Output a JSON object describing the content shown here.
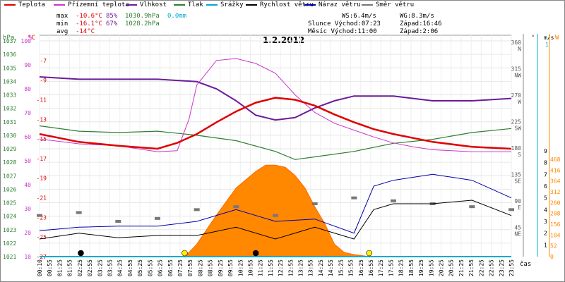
{
  "legend": [
    {
      "label": "Teplota",
      "color": "#e00000"
    },
    {
      "label": "Přízemní teplota",
      "color": "#cc33cc"
    },
    {
      "label": "Vlhkost",
      "color": "#6a1b9a"
    },
    {
      "label": "Tlak",
      "color": "#2e7d32"
    },
    {
      "label": "Srážky",
      "color": "#00aacc"
    },
    {
      "label": "Rychlost větru",
      "color": "#000000"
    },
    {
      "label": "Náraz větru",
      "color": "#0000aa"
    },
    {
      "label": "Směr větru",
      "color": "#777777"
    }
  ],
  "stats": {
    "max_label": "max",
    "min_label": "min",
    "avg_label": "avg",
    "max_temp": "-10.6°C",
    "max_hum": "85%",
    "max_press": "1030.9hPa",
    "max_rain": "0.0mm",
    "min_temp": "-16.1°C",
    "min_hum": "67%",
    "min_press": "1028.2hPa",
    "avg_temp": "-14°C"
  },
  "info": {
    "ws": "WS:6.4m/s",
    "wg": "WG:8.3m/s",
    "sun": "Slunce Východ:07:23",
    "sunset": "Západ:16:46",
    "moon": "Měsíc  Východ:11:00",
    "moonset": "Západ:2:06"
  },
  "colors": {
    "temp": "#e00000",
    "ground": "#cc33cc",
    "hum": "#6a1b9a",
    "press": "#2e7d32",
    "rain": "#00aacc",
    "wind": "#000000",
    "gust": "#0000aa",
    "dir": "#777777",
    "solar": "#ff8800",
    "axis_hpa": "#2e7d32",
    "axis_pct": "#cc33cc",
    "axis_temp": "#e00000"
  },
  "chart_data": {
    "type": "line",
    "title": "1.2.2012",
    "x_label": "čas",
    "x_ticks": [
      "00:10",
      "00:55",
      "01:25",
      "01:55",
      "02:25",
      "02:55",
      "03:25",
      "03:55",
      "04:25",
      "04:55",
      "05:25",
      "05:55",
      "06:25",
      "06:55",
      "07:25",
      "07:55",
      "08:25",
      "08:55",
      "09:25",
      "09:55",
      "10:25",
      "10:55",
      "11:25",
      "11:55",
      "12:25",
      "12:55",
      "13:25",
      "13:55",
      "14:25",
      "14:55",
      "15:25",
      "15:55",
      "16:25",
      "16:55",
      "17:25",
      "17:55",
      "18:25",
      "18:55",
      "19:25",
      "19:55",
      "20:25",
      "20:55",
      "21:25",
      "21:55",
      "22:25",
      "22:55",
      "23:25",
      "23:55"
    ],
    "axes": {
      "hpa": {
        "label": "hPa",
        "min": 1021,
        "max": 1037,
        "ticks": [
          1021,
          1022,
          1023,
          1024,
          1025,
          1026,
          1027,
          1028,
          1029,
          1030,
          1031,
          1032,
          1033,
          1034,
          1035,
          1036,
          1037
        ]
      },
      "pct": {
        "label": "%",
        "min": 10,
        "max": 100,
        "ticks": [
          10,
          20,
          30,
          40,
          50,
          60,
          70,
          80,
          90,
          100
        ]
      },
      "temp": {
        "label": "°C",
        "min": -27,
        "max": -5,
        "ticks": [
          -27,
          -25,
          -23,
          -21,
          -19,
          -17,
          -15,
          -13,
          -11,
          -9,
          -7
        ]
      },
      "dir": {
        "label": "°",
        "ticks": [
          {
            "v": 360,
            "l": "N"
          },
          {
            "v": 315,
            "l": "NW"
          },
          {
            "v": 270,
            "l": "W"
          },
          {
            "v": 225,
            "l": "SW"
          },
          {
            "v": 180,
            "l": "S"
          },
          {
            "v": 135,
            "l": "SE"
          },
          {
            "v": 90,
            "l": "E"
          },
          {
            "v": 45,
            "l": "NE"
          }
        ]
      },
      "wind": {
        "label": "m/s",
        "min": 0,
        "max": 9,
        "ticks": [
          1,
          2,
          3,
          4,
          5,
          6,
          7,
          8,
          9
        ]
      },
      "rain": {
        "label": "mm",
        "ticks": [
          1
        ]
      },
      "solar": {
        "label": "W",
        "min": 0,
        "max": 468,
        "ticks": [
          0,
          52,
          104,
          156,
          208,
          260,
          312,
          364,
          416,
          468
        ]
      }
    },
    "series": [
      {
        "name": "Teplota",
        "axis": "temp",
        "x": [
          0,
          2,
          4,
          6,
          7,
          8,
          9,
          10,
          11,
          12,
          13,
          14,
          15,
          16,
          17,
          18,
          19,
          20,
          22,
          24
        ],
        "y": [
          -14.5,
          -15.3,
          -15.7,
          -16.0,
          -15.4,
          -14.5,
          -13.3,
          -12.2,
          -11.3,
          -10.8,
          -11.0,
          -11.6,
          -12.5,
          -13.3,
          -14.0,
          -14.5,
          -14.9,
          -15.3,
          -15.8,
          -16.0
        ]
      },
      {
        "name": "Přízemní teplota",
        "axis": "temp",
        "x": [
          0,
          2,
          4,
          6,
          7,
          7.6,
          8,
          9,
          10,
          11,
          12,
          13,
          14,
          15,
          16,
          17,
          18,
          19,
          20,
          22,
          24
        ],
        "y": [
          -15.0,
          -15.5,
          -15.7,
          -16.3,
          -16.2,
          -13.0,
          -9.5,
          -7.0,
          -6.8,
          -7.3,
          -8.3,
          -10.5,
          -12.3,
          -13.4,
          -14.1,
          -14.8,
          -15.4,
          -15.8,
          -16.1,
          -16.3,
          -16.3
        ]
      },
      {
        "name": "Vlhkost",
        "axis": "pct",
        "x": [
          0,
          2,
          4,
          6,
          8,
          9,
          10,
          11,
          12,
          13,
          14,
          15,
          16,
          17,
          18,
          19,
          20,
          22,
          24
        ],
        "y": [
          85,
          84,
          84,
          84,
          83,
          80,
          75,
          69,
          67,
          68,
          72,
          75,
          77,
          77,
          77,
          76,
          75,
          75,
          76
        ]
      },
      {
        "name": "Tlak",
        "axis": "hpa",
        "x": [
          0,
          2,
          4,
          6,
          8,
          10,
          12,
          13,
          14,
          16,
          18,
          20,
          22,
          24
        ],
        "y": [
          1030.7,
          1030.3,
          1030.2,
          1030.3,
          1030.0,
          1029.6,
          1028.8,
          1028.2,
          1028.4,
          1028.8,
          1029.4,
          1029.7,
          1030.2,
          1030.5
        ]
      },
      {
        "name": "Rychlost větru",
        "axis": "wind",
        "x": [
          0,
          2,
          4,
          6,
          8,
          10,
          12,
          14,
          16,
          17,
          18,
          20,
          22,
          24
        ],
        "y": [
          1.5,
          2.0,
          1.6,
          1.8,
          1.8,
          2.5,
          1.5,
          2.5,
          1.5,
          4.0,
          4.5,
          4.5,
          4.8,
          3.5
        ]
      },
      {
        "name": "Náraz větru",
        "axis": "wind",
        "x": [
          0,
          2,
          4,
          6,
          8,
          10,
          12,
          14,
          16,
          17,
          18,
          20,
          22,
          24
        ],
        "y": [
          2.2,
          2.5,
          2.6,
          2.6,
          3.0,
          4.0,
          3.0,
          3.2,
          2.0,
          6.0,
          6.5,
          7.0,
          6.5,
          5.0
        ]
      },
      {
        "name": "Směr větru",
        "axis": "dir",
        "x": [
          0,
          2,
          4,
          6,
          8,
          10,
          12,
          14,
          16,
          18,
          20,
          22,
          24
        ],
        "y": [
          70,
          75,
          60,
          65,
          80,
          85,
          70,
          90,
          100,
          95,
          90,
          85,
          80
        ]
      },
      {
        "name": "Solar",
        "axis": "solar",
        "x": [
          7.4,
          8,
          9,
          10,
          11,
          11.5,
          12,
          12.5,
          13,
          13.5,
          14,
          14.5,
          15,
          15.5,
          16,
          16.77
        ],
        "y": [
          0,
          60,
          200,
          330,
          410,
          440,
          440,
          430,
          390,
          330,
          240,
          160,
          60,
          20,
          10,
          0
        ]
      }
    ],
    "markers": [
      {
        "kind": "sunrise",
        "time": 7.38,
        "color": "#ffee00"
      },
      {
        "kind": "sunset",
        "time": 16.77,
        "color": "#ffee00"
      },
      {
        "kind": "moonset",
        "time": 2.1,
        "color": "#000000"
      },
      {
        "kind": "moonrise",
        "time": 11.0,
        "color": "#000000"
      }
    ]
  }
}
